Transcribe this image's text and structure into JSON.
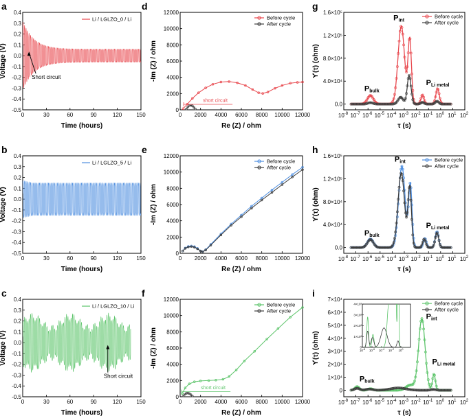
{
  "colors": {
    "red": "#e8474d",
    "blue": "#4f8fe0",
    "green": "#5cc46a",
    "gray": "#3d3d3d",
    "axis": "#000000"
  },
  "chart_data": [
    {
      "id": "a",
      "type": "line",
      "panel_label": "a",
      "xlabel": "Time (hours)",
      "ylabel": "Voltage (V)",
      "xlim": [
        0,
        150
      ],
      "ylim": [
        -0.5,
        0.4
      ],
      "xticks": [
        "0",
        "30",
        "60",
        "90",
        "120",
        "150"
      ],
      "yticks": [
        "-0.5",
        "-0.4",
        "-0.3",
        "-0.2",
        "-0.1",
        "0.0",
        "0.1",
        "0.2",
        "0.3",
        "0.4"
      ],
      "series": [
        {
          "name": "Li / LGLZO_0 / Li",
          "color": "#e8474d",
          "amplitude_start": 0.32,
          "amplitude_end": 0.06,
          "decay_hours": 14
        }
      ],
      "annotations": [
        {
          "text": "Short circuit",
          "x": 8,
          "y": -0.14
        }
      ]
    },
    {
      "id": "b",
      "type": "line",
      "panel_label": "b",
      "xlabel": "Time (hours)",
      "ylabel": "Voltage (V)",
      "xlim": [
        0,
        150
      ],
      "ylim": [
        -0.5,
        0.4
      ],
      "xticks": [
        "0",
        "30",
        "60",
        "90",
        "120",
        "150"
      ],
      "yticks": [
        "-0.5",
        "-0.4",
        "-0.3",
        "-0.2",
        "-0.1",
        "0.0",
        "0.1",
        "0.2",
        "0.3",
        "0.4"
      ],
      "series": [
        {
          "name": "Li / LGLZO_5 / Li",
          "color": "#4f8fe0",
          "amplitude": 0.15,
          "end_hours": 150
        }
      ]
    },
    {
      "id": "c",
      "type": "line",
      "panel_label": "c",
      "xlabel": "Time (hours)",
      "ylabel": "Voltage (V)",
      "xlim": [
        0,
        150
      ],
      "ylim": [
        -0.5,
        0.4
      ],
      "xticks": [
        "0",
        "30",
        "60",
        "90",
        "120",
        "150"
      ],
      "yticks": [
        "-0.5",
        "-0.4",
        "-0.3",
        "-0.2",
        "-0.1",
        "0.0",
        "0.1",
        "0.2",
        "0.3",
        "0.4"
      ],
      "series": [
        {
          "name": "Li / LGLZO_10 / Li",
          "color": "#5cc46a",
          "amplitude": 0.22,
          "end_hours": 137
        }
      ],
      "annotations": [
        {
          "text": "Short circuit",
          "x": 108,
          "y": -0.2
        }
      ]
    },
    {
      "id": "d",
      "type": "line",
      "panel_label": "d",
      "xlabel": "Re (Z) / ohm",
      "ylabel": "-Im (Z) / ohm",
      "xlim": [
        0,
        12000
      ],
      "ylim": [
        0,
        12000
      ],
      "xticks": [
        "0",
        "2000",
        "4000",
        "6000",
        "8000",
        "10000",
        "12000"
      ],
      "yticks": [
        "0",
        "2000",
        "4000",
        "6000",
        "8000",
        "10000",
        "12000"
      ],
      "series": [
        {
          "name": "Before cycle",
          "color": "#e8474d",
          "x": [
            300,
            700,
            1200,
            1800,
            2500,
            3200,
            4000,
            4800,
            5600,
            6400,
            7100,
            7700,
            8100,
            8600,
            9300,
            10000,
            10800,
            11500,
            12000
          ],
          "y": [
            150,
            700,
            1400,
            2100,
            2700,
            3150,
            3420,
            3480,
            3330,
            3000,
            2500,
            2100,
            2020,
            2200,
            2650,
            3000,
            3280,
            3380,
            3420
          ]
        },
        {
          "name": "After cycle",
          "color": "#3d3d3d",
          "x": [
            600,
            750,
            900,
            1050,
            1200,
            1350,
            1500
          ],
          "y": [
            100,
            350,
            520,
            560,
            500,
            300,
            100
          ]
        }
      ],
      "annotations": [
        {
          "text": "short circuit",
          "x": 2100,
          "y": 800
        }
      ]
    },
    {
      "id": "e",
      "type": "line",
      "panel_label": "e",
      "xlabel": "Re (Z) / ohm",
      "ylabel": "-Im (Z) / ohm",
      "xlim": [
        0,
        12000
      ],
      "ylim": [
        0,
        12000
      ],
      "xticks": [
        "0",
        "2000",
        "4000",
        "6000",
        "8000",
        "10000",
        "12000"
      ],
      "yticks": [
        "0",
        "2000",
        "4000",
        "6000",
        "8000",
        "10000",
        "12000"
      ],
      "series": [
        {
          "name": "Before cycle",
          "color": "#4f8fe0",
          "x": [
            250,
            500,
            800,
            1100,
            1400,
            1700,
            2000,
            2200,
            2500,
            3000,
            4000,
            5000,
            6000,
            7000,
            8000,
            9000,
            10000,
            11000,
            12000
          ],
          "y": [
            300,
            650,
            850,
            900,
            820,
            600,
            300,
            200,
            450,
            1100,
            2400,
            3600,
            4700,
            5800,
            6800,
            7800,
            8750,
            9700,
            10600
          ]
        },
        {
          "name": "After cycle",
          "color": "#3d3d3d",
          "x": [
            250,
            500,
            800,
            1100,
            1400,
            1700,
            2000,
            2200,
            2500,
            3000,
            4000,
            5000,
            6000,
            7000,
            8000,
            9000,
            10000,
            11000,
            12000
          ],
          "y": [
            280,
            600,
            780,
            820,
            750,
            550,
            280,
            180,
            400,
            1000,
            2250,
            3450,
            4500,
            5550,
            6550,
            7500,
            8450,
            9400,
            10300
          ]
        }
      ]
    },
    {
      "id": "f",
      "type": "line",
      "panel_label": "f",
      "xlabel": "Re (Z) / ohm",
      "ylabel": "-Im (Z) / ohm",
      "xlim": [
        0,
        12000
      ],
      "ylim": [
        0,
        12000
      ],
      "xticks": [
        "0",
        "2000",
        "4000",
        "6000",
        "8000",
        "10000",
        "12000"
      ],
      "yticks": [
        "0",
        "2000",
        "4000",
        "6000",
        "8000",
        "10000",
        "12000"
      ],
      "series": [
        {
          "name": "Before cycle",
          "color": "#5cc46a",
          "x": [
            200,
            500,
            900,
            1400,
            2000,
            2800,
            3500,
            4200,
            4800,
            5500,
            6300,
            7300,
            8500,
            9600,
            10800,
            12000
          ],
          "y": [
            400,
            1100,
            1600,
            1850,
            1950,
            2000,
            2050,
            2150,
            2500,
            3300,
            4400,
            5600,
            7100,
            8400,
            9800,
            11000
          ]
        },
        {
          "name": "After cycle",
          "color": "#3d3d3d",
          "x": [
            300,
            450,
            600,
            750,
            900,
            1050,
            1200
          ],
          "y": [
            100,
            300,
            420,
            450,
            400,
            250,
            100
          ]
        }
      ],
      "annotations": [
        {
          "text": "short circuit",
          "x": 1900,
          "y": 750
        }
      ]
    },
    {
      "id": "g",
      "type": "line",
      "panel_label": "g",
      "xlabel": "τ (s)",
      "ylabel": "ϒ(τ) (ohm)",
      "xscale": "log",
      "xlim": [
        -8,
        2
      ],
      "ylim": [
        -10000,
        160000
      ],
      "xtick_base": "10",
      "xtick_exps": [
        "-8",
        "-7",
        "-6",
        "-5",
        "-4",
        "-3",
        "-2",
        "-1",
        "0",
        "1",
        "2"
      ],
      "yticks": [
        "0.0",
        "4.0×10⁴",
        "8.0×10⁴",
        "1.2×10⁵",
        "1.6×10⁵"
      ],
      "series": [
        {
          "name": "Before cycle",
          "color": "#e8474d",
          "peaks": [
            {
              "logtau": -5.8,
              "height": 15000,
              "width": 0.35
            },
            {
              "logtau": -3.25,
              "height": 136000,
              "width": 0.38
            },
            {
              "logtau": -2.55,
              "height": 112000,
              "width": 0.2
            },
            {
              "logtau": -1.5,
              "height": 16000,
              "width": 0.18
            },
            {
              "logtau": -0.25,
              "height": 27000,
              "width": 0.2
            }
          ]
        },
        {
          "name": "After cycle",
          "color": "#3d3d3d",
          "peaks": [
            {
              "logtau": -5.8,
              "height": 2500,
              "width": 0.3
            },
            {
              "logtau": -3.3,
              "height": 12000,
              "width": 0.3
            },
            {
              "logtau": -2.6,
              "height": 50000,
              "width": 0.22
            },
            {
              "logtau": -1.5,
              "height": 3000,
              "width": 0.2
            },
            {
              "logtau": -0.3,
              "height": 5000,
              "width": 0.2
            }
          ]
        }
      ],
      "peak_labels": [
        {
          "main": "P",
          "sub": "bulk",
          "x": -6.3,
          "y": 23000
        },
        {
          "main": "P",
          "sub": "int",
          "x": -3.9,
          "y": 146000
        },
        {
          "main": "P",
          "sub": "Li metal",
          "x": -1.2,
          "y": 33000
        }
      ]
    },
    {
      "id": "h",
      "type": "line",
      "panel_label": "h",
      "xlabel": "τ (s)",
      "ylabel": "ϒ(τ) (ohm)",
      "xscale": "log",
      "xlim": [
        -8,
        2
      ],
      "ylim": [
        -10000,
        160000
      ],
      "xtick_base": "10",
      "xtick_exps": [
        "-8",
        "-7",
        "-6",
        "-5",
        "-4",
        "-3",
        "-2",
        "-1",
        "0",
        "1",
        "2"
      ],
      "yticks": [
        "0.0",
        "4.0×10⁴",
        "8.0×10⁴",
        "1.2×10⁵",
        "1.6×10⁵"
      ],
      "series": [
        {
          "name": "Before cycle",
          "color": "#4f8fe0",
          "peaks": [
            {
              "logtau": -5.8,
              "height": 15000,
              "width": 0.35
            },
            {
              "logtau": -3.2,
              "height": 142000,
              "width": 0.38
            },
            {
              "logtau": -2.5,
              "height": 108000,
              "width": 0.2
            },
            {
              "logtau": -1.3,
              "height": 16000,
              "width": 0.18
            },
            {
              "logtau": -0.3,
              "height": 28000,
              "width": 0.2
            }
          ]
        },
        {
          "name": "After cycle",
          "color": "#3d3d3d",
          "peaks": [
            {
              "logtau": -5.8,
              "height": 14000,
              "width": 0.35
            },
            {
              "logtau": -3.25,
              "height": 130000,
              "width": 0.38
            },
            {
              "logtau": -2.55,
              "height": 104000,
              "width": 0.2
            },
            {
              "logtau": -1.35,
              "height": 15000,
              "width": 0.18
            },
            {
              "logtau": -0.3,
              "height": 26000,
              "width": 0.2
            }
          ]
        }
      ],
      "peak_labels": [
        {
          "main": "P",
          "sub": "bulk",
          "x": -6.3,
          "y": 21000
        },
        {
          "main": "P",
          "sub": "int",
          "x": -3.8,
          "y": 150000
        },
        {
          "main": "P",
          "sub": "Li metal",
          "x": -1.2,
          "y": 34000
        }
      ]
    },
    {
      "id": "i",
      "type": "line",
      "panel_label": "i",
      "xlabel": "τ (s)",
      "ylabel": "ϒ(τ) (ohm)",
      "xscale": "log",
      "xlim": [
        -8,
        2
      ],
      "ylim": [
        -5000,
        70000
      ],
      "xtick_base": "10",
      "xtick_exps": [
        "-8",
        "-7",
        "-6",
        "-5",
        "-4",
        "-3",
        "-2",
        "-1",
        "0",
        "1",
        "2"
      ],
      "yticks": [
        "0",
        "1×10⁴",
        "2×10⁴",
        "3×10⁴",
        "4×10⁴",
        "5×10⁴",
        "6×10⁴",
        "7×10⁴"
      ],
      "series": [
        {
          "name": "Before cycle",
          "color": "#5cc46a",
          "peaks": [
            {
              "logtau": -6.9,
              "height": 2800,
              "width": 0.25
            },
            {
              "logtau": -5.8,
              "height": 1200,
              "width": 0.3
            },
            {
              "logtau": -2.5,
              "height": 4000,
              "width": 0.5
            },
            {
              "logtau": -1.55,
              "height": 55000,
              "width": 0.38
            },
            {
              "logtau": -0.55,
              "height": 12500,
              "width": 0.17
            }
          ]
        },
        {
          "name": "After cycle",
          "color": "#3d3d3d",
          "peaks": [
            {
              "logtau": -6.9,
              "height": 1500,
              "width": 0.3
            },
            {
              "logtau": -5.9,
              "height": 900,
              "width": 0.4
            },
            {
              "logtau": -3.5,
              "height": 1800,
              "width": 0.9
            },
            {
              "logtau": -0.6,
              "height": 600,
              "width": 0.3
            }
          ]
        }
      ],
      "peak_labels": [
        {
          "main": "P",
          "sub": "bulk",
          "x": -6.7,
          "y": 7000
        },
        {
          "main": "P",
          "sub": "int",
          "x": -1.2,
          "y": 55000
        },
        {
          "main": "P",
          "sub": "Li metal",
          "x": -0.7,
          "y": 20000
        }
      ],
      "inset": {
        "xlim": [
          -8,
          2
        ],
        "ylim": [
          0,
          4000
        ],
        "yticks": [
          "0",
          "1×10³",
          "2×10³",
          "3×10³",
          "4×10³"
        ],
        "xtick_exps": [
          "-8",
          "-6",
          "-4",
          "-2",
          "0"
        ]
      }
    }
  ]
}
